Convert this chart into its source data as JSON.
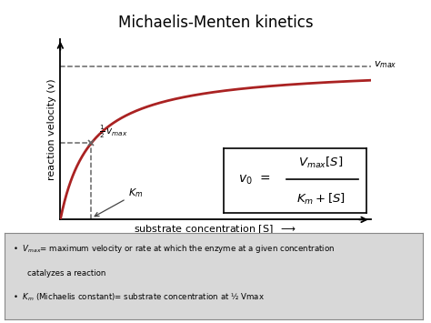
{
  "title": "Michaelis-Menten kinetics",
  "title_fontsize": 12,
  "xlabel": "substrate concentration [S]",
  "ylabel": "reaction velocity (v)",
  "curve_color": "#aa2222",
  "dashed_color": "#666666",
  "vmax": 1.0,
  "km": 0.5,
  "x_max": 5.0,
  "bg_color": "#ffffff",
  "bullet_box_color": "#d8d8d8",
  "formula_box_color": "#ffffff"
}
